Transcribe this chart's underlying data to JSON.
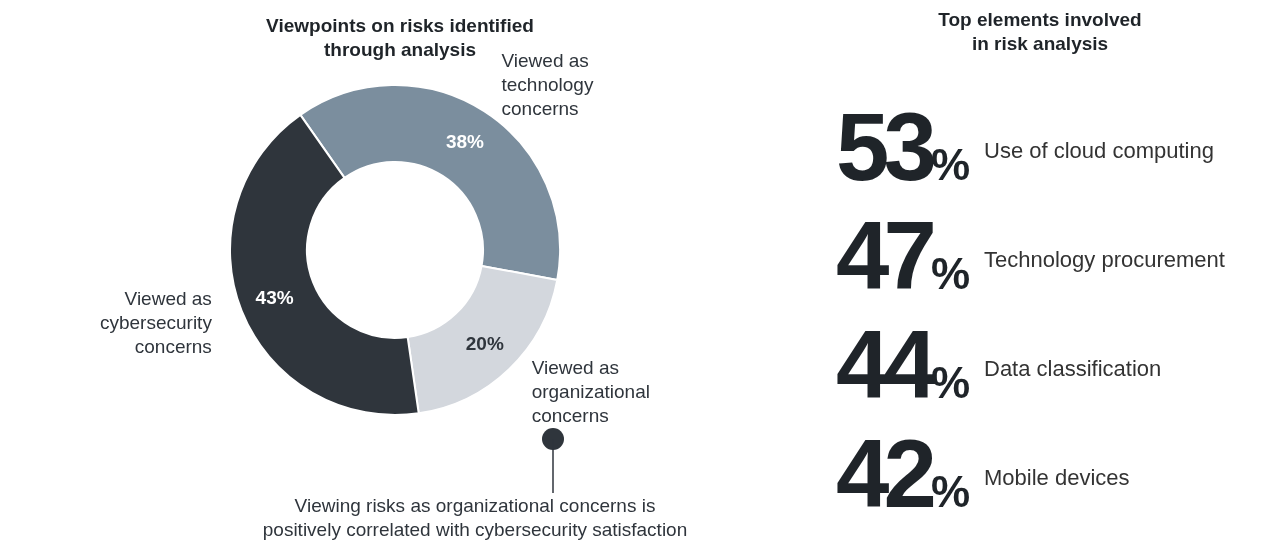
{
  "chart_data": [
    {
      "type": "donut",
      "title": "Viewpoints on risks identified\nthrough analysis",
      "categories": [
        "Viewed as\ntechnology\nconcerns",
        "Viewed as\norganizational\nconcerns",
        "Viewed as\ncybersecurity\nconcerns"
      ],
      "values": [
        38,
        20,
        43
      ],
      "colors": [
        "#7b8e9e",
        "#d3d7dd",
        "#2f353c"
      ],
      "value_labels": [
        "38%",
        "20%",
        "43%"
      ],
      "annotations": [
        "Viewing risks as organizational concerns is\npositively correlated with cybersecurity satisfaction"
      ]
    },
    {
      "type": "other",
      "title": "Top elements involved\nin risk analysis",
      "categories": [
        "Use of cloud computing",
        "Technology procurement",
        "Data classification",
        "Mobile devices"
      ],
      "values": [
        53,
        47,
        44,
        42
      ],
      "value_labels": [
        "53%",
        "47%",
        "44%",
        "42%"
      ]
    }
  ]
}
